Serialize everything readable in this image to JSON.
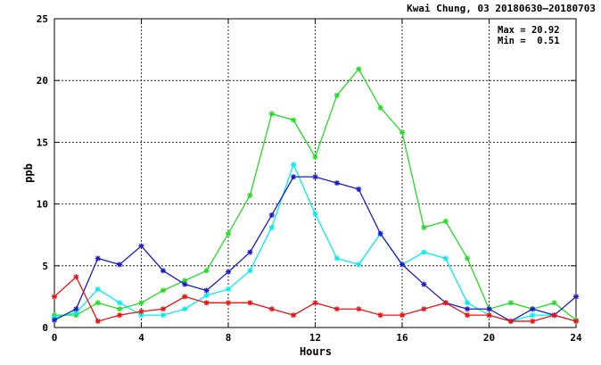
{
  "chart_data": {
    "type": "line",
    "title": "Kwai Chung, 03 20180630–20180703",
    "xlabel": "Hours",
    "ylabel": "ppb",
    "xlim": [
      0,
      24
    ],
    "ylim": [
      0,
      25
    ],
    "xticks": [
      0,
      4,
      8,
      12,
      16,
      20,
      24
    ],
    "yticks": [
      0,
      5,
      10,
      15,
      20,
      25
    ],
    "grid": true,
    "stats": {
      "max_label": "Max =",
      "max_value": "20.92",
      "min_label": "Min =",
      "min_value": "0.51"
    },
    "x": [
      0,
      1,
      2,
      3,
      4,
      5,
      6,
      7,
      8,
      9,
      10,
      11,
      12,
      13,
      14,
      15,
      16,
      17,
      18,
      19,
      20,
      21,
      22,
      23,
      24
    ],
    "series": [
      {
        "color": "#22dd22",
        "values": [
          1.0,
          1.0,
          2.0,
          1.5,
          2.0,
          3.0,
          3.8,
          4.6,
          7.6,
          10.7,
          17.3,
          16.8,
          13.8,
          18.8,
          20.92,
          17.8,
          15.8,
          8.1,
          8.6,
          5.6,
          1.5,
          2.0,
          1.5,
          2.0,
          0.6
        ]
      },
      {
        "color": "#00eeee",
        "values": [
          0.8,
          1.2,
          3.1,
          2.0,
          1.0,
          1.0,
          1.5,
          2.6,
          3.1,
          4.6,
          8.1,
          13.2,
          9.2,
          5.6,
          5.1,
          7.6,
          5.1,
          6.1,
          5.6,
          2.0,
          1.0,
          0.51,
          1.0,
          1.0,
          0.51
        ]
      },
      {
        "color": "#1a1acc",
        "values": [
          0.6,
          1.5,
          5.6,
          5.1,
          6.6,
          4.6,
          3.5,
          3.0,
          4.5,
          6.1,
          9.1,
          12.2,
          12.2,
          11.7,
          11.2,
          7.6,
          5.1,
          3.5,
          2.0,
          1.5,
          1.5,
          0.51,
          1.5,
          1.0,
          2.5
        ]
      },
      {
        "color": "#ee1111",
        "values": [
          2.5,
          4.1,
          0.51,
          1.0,
          1.3,
          1.5,
          2.5,
          2.0,
          2.0,
          2.0,
          1.5,
          1.0,
          2.0,
          1.5,
          1.5,
          1.0,
          1.0,
          1.5,
          2.0,
          1.0,
          1.0,
          0.51,
          0.51,
          1.0,
          0.51
        ]
      }
    ]
  }
}
